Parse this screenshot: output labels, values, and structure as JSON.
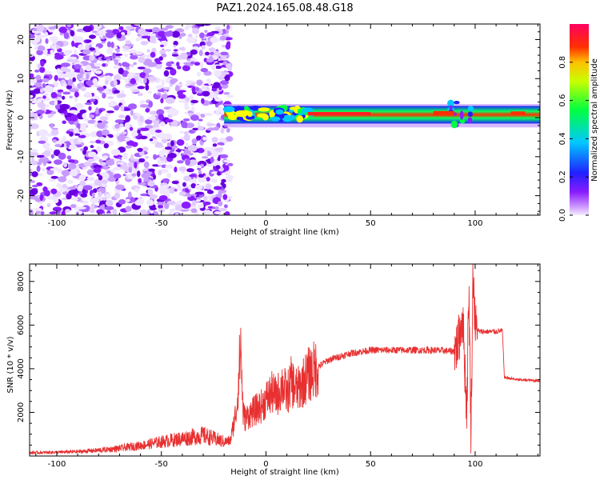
{
  "figure": {
    "title": "PAZ1.2024.165.08.48.G18"
  },
  "colors": {
    "noise": "#8a1cff",
    "snr_line": "#e83030",
    "colorbar_stops": [
      "#e6d6ff",
      "#a040ff",
      "#2020ff",
      "#00c8ff",
      "#00ff40",
      "#ffff00",
      "#ff3000",
      "#ff0060"
    ]
  },
  "chart_data": [
    {
      "type": "heatmap",
      "title": "",
      "xlabel": "Height of straight line (km)",
      "ylabel": "Frequency (Hz)",
      "xlim": [
        -113,
        131
      ],
      "ylim": [
        -25,
        24
      ],
      "xticks": [
        -100,
        -50,
        0,
        50,
        100
      ],
      "yticks": [
        -20,
        -10,
        0,
        10,
        20
      ],
      "grid": false,
      "description_regions": [
        {
          "x_range": [
            -113,
            -20
          ],
          "freq_range": [
            -25,
            24
          ],
          "amplitude": "low (noise)"
        },
        {
          "x_range": [
            -20,
            131
          ],
          "freq_range": [
            -2,
            2
          ],
          "amplitude": "high, narrow band near 1 Hz"
        }
      ],
      "peak_band": {
        "frequency": 1,
        "x_range": [
          20,
          50
        ],
        "amplitude": 1.0
      },
      "colorbar": {
        "label": "Normalized spectral amplitude",
        "range": [
          0.0,
          1.0
        ],
        "ticks": [
          0.0,
          0.2,
          0.4,
          0.6,
          0.8
        ]
      }
    },
    {
      "type": "line",
      "title": "",
      "xlabel": "Height of straight line (km)",
      "ylabel": "SNR (10 * v/v)",
      "xlim": [
        -113,
        131
      ],
      "ylim": [
        0,
        8800
      ],
      "xticks": [
        -100,
        -50,
        0,
        50,
        100
      ],
      "yticks": [
        2000,
        4000,
        6000,
        8000
      ],
      "grid": false,
      "series": [
        {
          "x": [
            -113,
            -100,
            -90,
            -80,
            -70,
            -60,
            -50,
            -40,
            -30,
            -25,
            -20,
            -17,
            -14,
            -12,
            -11,
            -10,
            -8,
            -5,
            -2,
            0,
            3,
            5,
            8,
            10,
            12,
            15,
            20,
            25,
            30,
            40,
            50,
            60,
            70,
            80,
            90,
            92,
            94,
            96,
            97,
            98,
            99,
            100,
            102,
            105,
            110,
            113,
            114,
            120,
            131
          ],
          "y": [
            150,
            170,
            200,
            260,
            350,
            480,
            650,
            800,
            950,
            800,
            650,
            700,
            2200,
            5200,
            2000,
            1700,
            1900,
            2100,
            2300,
            2600,
            2900,
            2700,
            3300,
            2800,
            3400,
            3000,
            3700,
            4100,
            4400,
            4700,
            4850,
            4850,
            4850,
            4850,
            4800,
            5200,
            6500,
            2000,
            7800,
            1000,
            8700,
            5900,
            5700,
            5700,
            5700,
            5750,
            3600,
            3500,
            3450
          ]
        }
      ]
    }
  ]
}
